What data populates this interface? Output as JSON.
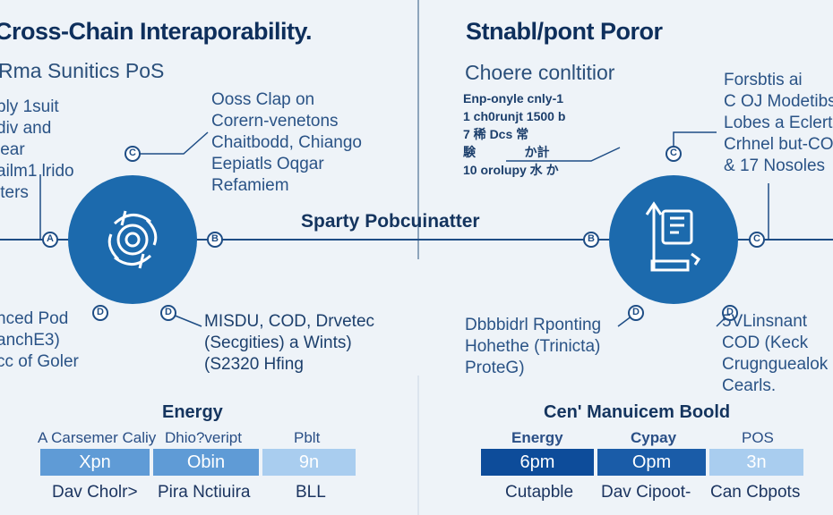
{
  "left": {
    "title": "Cross-Chain Interaporability.",
    "subtitle": "Rma Sunitics PoS",
    "top_left_note": "bly 1suit\ndiv and\nlear\nailm1 lrido\niters",
    "top_right_note": "Ooss Clap on\nCorern-venetons\nChaitbodd, Chiango\nEepiatls Oqgar\nRefamiem",
    "bottom_left_note": "nced Pod\nanchE3)\ncc of Goler",
    "bottom_right_note": "MISDU, COD, Drvetec\n(Secgities) a Wints)\n(S2320 Hfing",
    "node_badges": [
      "C",
      "A",
      "B",
      "D",
      "D"
    ],
    "table": {
      "caption": "Energy",
      "headers": [
        "A Carsemer Caliy",
        "Dhio?veript",
        "Pblt"
      ],
      "cells": [
        "Xpn",
        "Obin",
        "9n"
      ],
      "footers": [
        "Dav Cholr>",
        "Pira Nctiuira",
        "BLL"
      ]
    }
  },
  "center_label": "Sparty Pobcuinatter",
  "right": {
    "title": "Stnabl/pont Poror",
    "subtitle": "Choere conltitior",
    "data_lines": "Enp-onyle cnly-1\n1 ch0runjt 1500 b\n7 稀 Dcs 常\n験              か計\n10 orolupy 水 か",
    "top_right_note": "Forsbtis ai\nC OJ Modetibs\nLobes a Eclert\nCrhnel but-CO\n& 17 Nosoles",
    "bottom_left_note": "Dbbbidrl Rponting\nHohethe (Trinicta)\nProteG)",
    "bottom_right_note": "5VLinsnant\nCOD (Keck\nCrugnguealok\nCearls.",
    "node_badges": [
      "C",
      "B",
      "C",
      "D",
      "D"
    ],
    "table": {
      "caption": "Cen' Manuicem Boold",
      "headers": [
        "Energy",
        "Cypay",
        "POS"
      ],
      "cells": [
        "6pm",
        "Opm",
        "3n"
      ],
      "footers": [
        "Cutapble",
        "Dav Cipoot-",
        "Can Cbpots"
      ]
    }
  },
  "colors": {
    "node": "#1c6aad",
    "line": "#1e4d85",
    "cell_light": "#5f9bd6",
    "cell_pale": "#a9cdef",
    "cell_dark": "#0d4c9a",
    "cell_mid": "#1a5ca8"
  },
  "icons": [
    "aperture-icon",
    "data-tower-icon"
  ]
}
